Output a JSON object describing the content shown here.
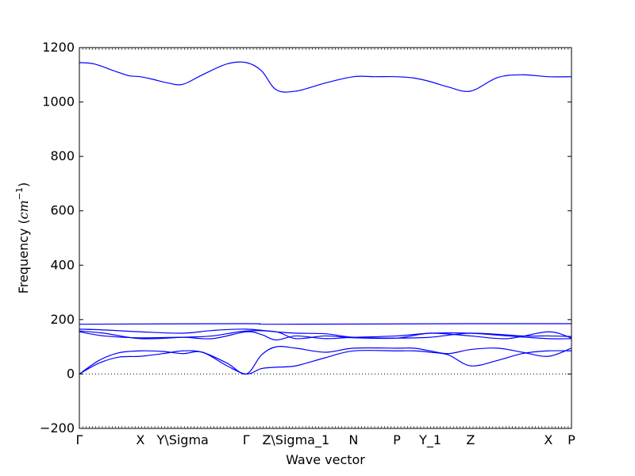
{
  "chart_data": {
    "type": "line",
    "title": "",
    "xlabel": "Wave vector",
    "ylabel_text": "Frequency (",
    "ylabel_math": "cm",
    "ylabel_sup": "−1",
    "ylabel_close": ")",
    "ylim": [
      -200,
      1200
    ],
    "yticks": [
      -200,
      0,
      200,
      400,
      600,
      800,
      1000,
      1200
    ],
    "xlim": [
      0,
      1
    ],
    "zero_line": true,
    "series_color": "#0000ff",
    "xticks": [
      {
        "label": "Γ",
        "x": 0.0
      },
      {
        "label": "X",
        "x": 0.124
      },
      {
        "label": "Y\\Sigma",
        "x": 0.21
      },
      {
        "label": "Γ",
        "x": 0.339
      },
      {
        "label": "Z\\Sigma_1",
        "x": 0.44
      },
      {
        "label": "N",
        "x": 0.557
      },
      {
        "label": "P",
        "x": 0.645
      },
      {
        "label": "Y_1",
        "x": 0.713
      },
      {
        "label": "Z",
        "x": 0.795
      },
      {
        "label": "X",
        "x": 0.953
      },
      {
        "label": "P",
        "x": 1.0
      }
    ],
    "series": [
      {
        "x": [
          0,
          0.03,
          0.07,
          0.1,
          0.124,
          0.15,
          0.18,
          0.21,
          0.25,
          0.3,
          0.339,
          0.37,
          0.4,
          0.44,
          0.5,
          0.557,
          0.6,
          0.645,
          0.68,
          0.713,
          0.75,
          0.795,
          0.85,
          0.9,
          0.953,
          1.0
        ],
        "values": [
          1145,
          1140,
          1115,
          1097,
          1093,
          1083,
          1070,
          1065,
          1100,
          1140,
          1145,
          1115,
          1045,
          1040,
          1070,
          1093,
          1093,
          1093,
          1088,
          1075,
          1055,
          1040,
          1090,
          1100,
          1093,
          1093
        ]
      },
      {
        "x": [
          0,
          0.339,
          0.4,
          0.795,
          1.0
        ],
        "values": [
          183,
          185,
          183,
          185,
          185
        ]
      },
      {
        "x": [
          0,
          0.05,
          0.124,
          0.21,
          0.27,
          0.339,
          0.4,
          0.44,
          0.5,
          0.557,
          0.645,
          0.713,
          0.795,
          0.9,
          0.953,
          1.0
        ],
        "values": [
          165,
          162,
          155,
          150,
          160,
          165,
          155,
          150,
          148,
          135,
          132,
          135,
          150,
          140,
          140,
          138
        ]
      },
      {
        "x": [
          0,
          0.05,
          0.124,
          0.21,
          0.27,
          0.339,
          0.4,
          0.44,
          0.5,
          0.557,
          0.645,
          0.713,
          0.795,
          0.87,
          0.953,
          1.0
        ],
        "values": [
          158,
          150,
          130,
          135,
          140,
          158,
          155,
          130,
          140,
          133,
          132,
          150,
          140,
          130,
          155,
          132
        ]
      },
      {
        "x": [
          0,
          0.05,
          0.124,
          0.21,
          0.27,
          0.339,
          0.37,
          0.4,
          0.44,
          0.5,
          0.557,
          0.645,
          0.713,
          0.795,
          0.87,
          0.953,
          1.0
        ],
        "values": [
          155,
          140,
          133,
          135,
          130,
          155,
          145,
          125,
          140,
          130,
          135,
          140,
          150,
          150,
          140,
          130,
          130
        ]
      },
      {
        "x": [
          0,
          0.04,
          0.08,
          0.124,
          0.17,
          0.21,
          0.25,
          0.3,
          0.339,
          0.37,
          0.4,
          0.44,
          0.5,
          0.557,
          0.645,
          0.68,
          0.713,
          0.75,
          0.795,
          0.85,
          0.9,
          0.953,
          1.0
        ],
        "values": [
          0,
          50,
          78,
          85,
          83,
          75,
          80,
          30,
          0,
          20,
          25,
          30,
          60,
          85,
          85,
          85,
          80,
          70,
          30,
          50,
          75,
          85,
          85
        ]
      },
      {
        "x": [
          0,
          0.04,
          0.08,
          0.124,
          0.17,
          0.21,
          0.25,
          0.3,
          0.339,
          0.37,
          0.4,
          0.44,
          0.5,
          0.557,
          0.645,
          0.68,
          0.713,
          0.75,
          0.795,
          0.85,
          0.9,
          0.953,
          1.0
        ],
        "values": [
          0,
          40,
          62,
          65,
          75,
          85,
          80,
          40,
          0,
          70,
          100,
          95,
          80,
          95,
          95,
          95,
          85,
          75,
          90,
          95,
          80,
          65,
          95
        ]
      }
    ]
  }
}
